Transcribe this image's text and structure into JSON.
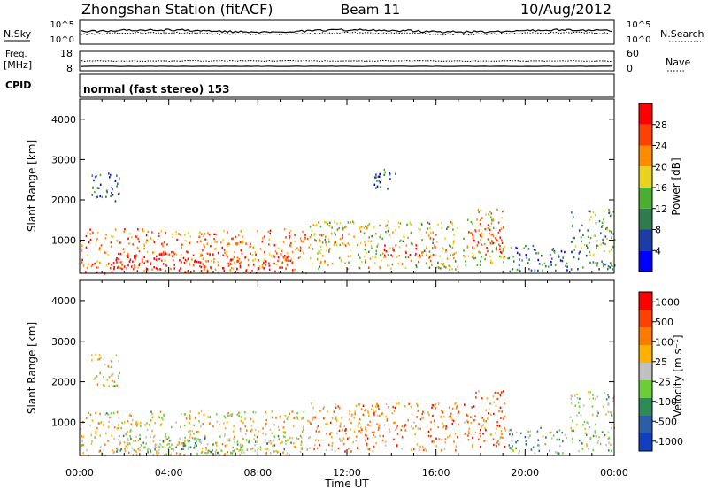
{
  "header": {
    "station": "Zhongshan Station (fitACF)",
    "beam": "Beam 11",
    "date": "10/Aug/2012"
  },
  "strips": {
    "nsky_label": "N.Sky",
    "nsky_ticks": [
      "10^5",
      "10^0"
    ],
    "nsearch_label": "N.Search",
    "freq_label_line1": "Freq.",
    "freq_label_line2": "[MHz]",
    "freq_ticks": [
      "18",
      "8"
    ],
    "nave_label": "Nave",
    "nave_ticks": [
      "60",
      "0"
    ],
    "cpid_label": "CPID",
    "cpid_text": "normal (fast stereo) 153"
  },
  "x_axis": {
    "label": "Time UT",
    "tick_labels": [
      "00:00",
      "04:00",
      "08:00",
      "12:00",
      "16:00",
      "20:00",
      "00:00"
    ]
  },
  "colors": {
    "power_scale": [
      "#0000ff",
      "#1e3ca6",
      "#2e7b4b",
      "#4cae2e",
      "#e8d21c",
      "#ff8c00",
      "#ff4000",
      "#ff0000"
    ],
    "velocity_scale": [
      "#ff0000",
      "#ff4000",
      "#ff7a00",
      "#ffb000",
      "#c0c0c0",
      "#6ccd3a",
      "#2e8b57",
      "#2a5ea8",
      "#1040c0"
    ]
  },
  "chart_data": [
    {
      "type": "heatmap",
      "panel": "power",
      "ylabel": "Slant Range [km]",
      "xlabel": "",
      "x_range_hours": [
        0,
        24
      ],
      "ylim": [
        180,
        4500
      ],
      "y_tick_labels": [
        "1000",
        "2000",
        "3000",
        "4000"
      ],
      "y_tick_values": [
        1000,
        2000,
        3000,
        4000
      ],
      "colorbar": {
        "label": "Power [dB]",
        "tick_labels": [
          "4",
          "8",
          "12",
          "16",
          "20",
          "24",
          "28"
        ]
      },
      "regions": [
        {
          "t0": 0.0,
          "t1": 10.3,
          "r0": 200,
          "r1": 1300,
          "level": 0.75
        },
        {
          "t0": 1.5,
          "t1": 9.5,
          "r0": 260,
          "r1": 700,
          "level": 0.95
        },
        {
          "t0": 10.3,
          "t1": 17.0,
          "r0": 300,
          "r1": 1500,
          "level": 0.55
        },
        {
          "t0": 13.5,
          "t1": 16.5,
          "r0": 600,
          "r1": 900,
          "level": 0.8
        },
        {
          "t0": 0.5,
          "t1": 1.8,
          "r0": 1900,
          "r1": 2700,
          "level": 0.2
        },
        {
          "t0": 17.2,
          "t1": 19.1,
          "r0": 400,
          "r1": 1800,
          "level": 0.6
        },
        {
          "t0": 17.6,
          "t1": 19.0,
          "r0": 700,
          "r1": 1400,
          "level": 0.95
        },
        {
          "t0": 19.2,
          "t1": 22.0,
          "r0": 250,
          "r1": 900,
          "level": 0.3
        },
        {
          "t0": 22.0,
          "t1": 24.0,
          "r0": 300,
          "r1": 1800,
          "level": 0.35
        },
        {
          "t0": 13.0,
          "t1": 14.2,
          "r0": 2300,
          "r1": 2800,
          "level": 0.25
        }
      ]
    },
    {
      "type": "heatmap",
      "panel": "velocity",
      "ylabel": "Slant Range [km]",
      "xlabel": "Time UT",
      "x_range_hours": [
        0,
        24
      ],
      "ylim": [
        180,
        4500
      ],
      "y_tick_labels": [
        "1000",
        "2000",
        "3000",
        "4000"
      ],
      "y_tick_values": [
        1000,
        2000,
        3000,
        4000
      ],
      "colorbar": {
        "label": "Velocity [m s⁻¹]",
        "tick_labels": [
          "1000",
          "500",
          "100",
          "25",
          "-25",
          "-100",
          "-500",
          "-1000"
        ]
      },
      "regions": [
        {
          "t0": 0.0,
          "t1": 10.3,
          "r0": 200,
          "r1": 1300,
          "level": 0.45
        },
        {
          "t0": 1.5,
          "t1": 9.5,
          "r0": 260,
          "r1": 700,
          "level": 0.6
        },
        {
          "t0": 10.3,
          "t1": 17.0,
          "r0": 300,
          "r1": 1500,
          "level": 0.3
        },
        {
          "t0": 0.5,
          "t1": 1.8,
          "r0": 1900,
          "r1": 2700,
          "level": 0.45
        },
        {
          "t0": 17.2,
          "t1": 19.1,
          "r0": 400,
          "r1": 1800,
          "level": 0.25
        },
        {
          "t0": 19.2,
          "t1": 22.0,
          "r0": 250,
          "r1": 900,
          "level": 0.65
        },
        {
          "t0": 22.0,
          "t1": 24.0,
          "r0": 300,
          "r1": 1800,
          "level": 0.55
        }
      ]
    }
  ]
}
